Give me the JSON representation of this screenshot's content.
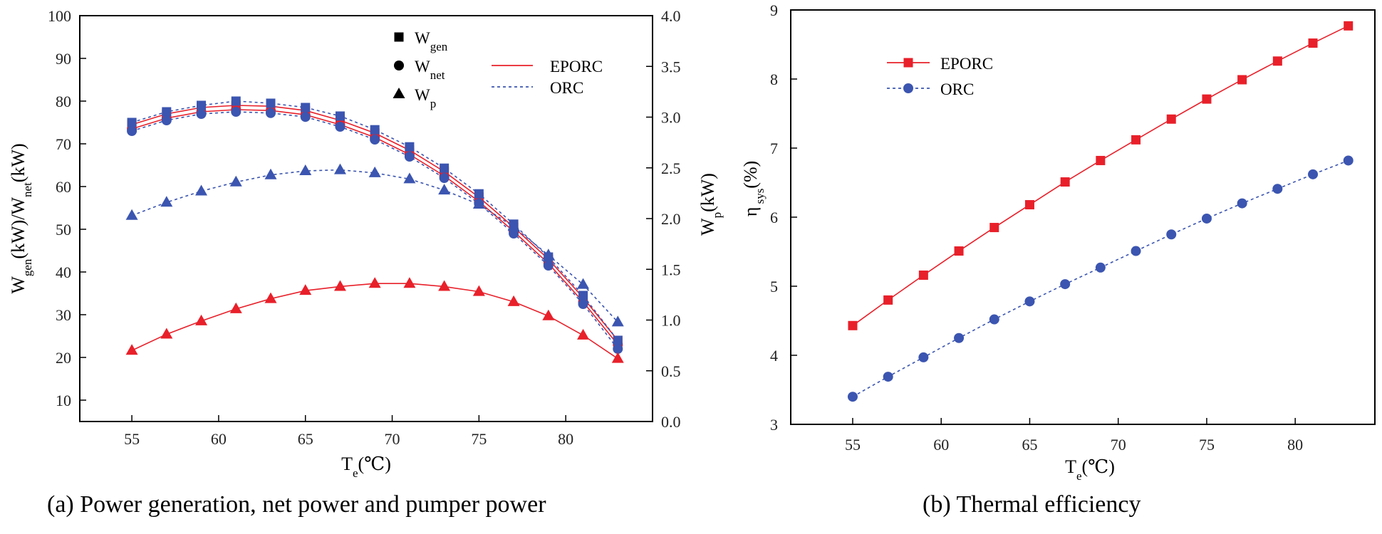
{
  "captions": {
    "a": "(a) Power generation, net power and pumper power",
    "b": "(b) Thermal efficiency"
  },
  "colors": {
    "eporc": "#e8202a",
    "orc": "#3b55b0",
    "axis": "#000000"
  },
  "chart_data": [
    {
      "type": "line",
      "xlabel": {
        "main": "T",
        "sub": "e",
        "tail": "(℃)"
      },
      "ylabel_left": {
        "parts": [
          [
            "W",
            ""
          ],
          [
            "gen",
            "sub"
          ],
          [
            "(kW)/W",
            ""
          ],
          [
            "net",
            "sub"
          ],
          [
            "(kW)",
            ""
          ]
        ]
      },
      "ylabel_right": {
        "parts": [
          [
            "W",
            ""
          ],
          [
            "p",
            "sub"
          ],
          [
            "(kW)",
            ""
          ]
        ]
      },
      "xlim": [
        52,
        85
      ],
      "xticks": [
        55,
        60,
        65,
        70,
        75,
        80
      ],
      "ylim_left": [
        5,
        100
      ],
      "yticks_left": [
        10,
        20,
        30,
        40,
        50,
        60,
        70,
        80,
        90,
        100
      ],
      "ylim_right": [
        0,
        4
      ],
      "yticks_right": [
        "0.0",
        "0.5",
        "1.0",
        "1.5",
        "2.0",
        "2.5",
        "3.0",
        "3.5",
        "4.0"
      ],
      "legend_markers": [
        {
          "main": "W",
          "sub": "gen",
          "marker": "square"
        },
        {
          "main": "W",
          "sub": "net",
          "marker": "circle"
        },
        {
          "main": "W",
          "sub": "p",
          "marker": "triangle"
        }
      ],
      "legend_lines": [
        {
          "label": "EPORC",
          "style": "solid",
          "color": "#e8202a"
        },
        {
          "label": "ORC",
          "style": "dashed",
          "color": "#3b55b0"
        }
      ],
      "x": [
        55,
        57,
        59,
        61,
        63,
        65,
        67,
        69,
        71,
        73,
        75,
        77,
        79,
        81,
        83
      ],
      "series": [
        {
          "label": "W_gen EPORC",
          "axis": "left",
          "marker": "square",
          "style": "solid",
          "color": "#e8202a",
          "values": [
            74.5,
            77,
            78.5,
            79,
            78.8,
            77.8,
            75.5,
            72.5,
            68.5,
            63.5,
            57.5,
            50.5,
            43,
            34,
            24
          ]
        },
        {
          "label": "W_net EPORC",
          "axis": "left",
          "marker": "circle",
          "style": "solid",
          "color": "#e8202a",
          "values": [
            73.5,
            76,
            77.5,
            78,
            77.8,
            76.8,
            74.5,
            71.5,
            67.5,
            62.5,
            56.5,
            49.5,
            42,
            33,
            23
          ]
        },
        {
          "label": "W_gen ORC",
          "axis": "left",
          "marker": "square",
          "style": "dashed",
          "color": "#3b55b0",
          "values": [
            75,
            77.5,
            79,
            80,
            79.5,
            78.5,
            76.5,
            73.3,
            69.3,
            64.3,
            58.3,
            51.2,
            43.5,
            34.5,
            24
          ]
        },
        {
          "label": "W_net ORC",
          "axis": "left",
          "marker": "circle",
          "style": "dashed",
          "color": "#3b55b0",
          "values": [
            73,
            75.5,
            77,
            77.5,
            77.2,
            76.3,
            74,
            71,
            67,
            62,
            56,
            49,
            41.5,
            32.5,
            22
          ]
        },
        {
          "label": "W_p EPORC",
          "axis": "right",
          "marker": "triangle",
          "style": "solid",
          "color": "#e8202a",
          "values": [
            0.7,
            0.86,
            0.99,
            1.11,
            1.21,
            1.29,
            1.33,
            1.36,
            1.36,
            1.33,
            1.28,
            1.18,
            1.04,
            0.85,
            0.62
          ]
        },
        {
          "label": "W_p ORC",
          "axis": "right",
          "marker": "triangle",
          "style": "dashed",
          "color": "#3b55b0",
          "values": [
            2.03,
            2.16,
            2.27,
            2.36,
            2.43,
            2.47,
            2.48,
            2.45,
            2.39,
            2.28,
            2.14,
            1.92,
            1.64,
            1.35,
            0.98
          ]
        }
      ]
    },
    {
      "type": "line",
      "xlabel": {
        "main": "T",
        "sub": "e",
        "tail": "(℃)"
      },
      "ylabel": {
        "parts": [
          [
            "η",
            ""
          ],
          [
            " sys",
            "sub"
          ],
          [
            "(%)",
            ""
          ]
        ]
      },
      "xlim": [
        51.5,
        84.5
      ],
      "xticks": [
        55,
        60,
        65,
        70,
        75,
        80
      ],
      "ylim": [
        3,
        9
      ],
      "yticks": [
        3,
        4,
        5,
        6,
        7,
        8,
        9
      ],
      "x": [
        55,
        57,
        59,
        61,
        63,
        65,
        67,
        69,
        71,
        73,
        75,
        77,
        79,
        81,
        83
      ],
      "series": [
        {
          "label": "EPORC",
          "marker": "square",
          "style": "solid",
          "color": "#e8202a",
          "values": [
            4.43,
            4.8,
            5.16,
            5.51,
            5.85,
            6.18,
            6.51,
            6.82,
            7.12,
            7.42,
            7.71,
            7.99,
            8.26,
            8.52,
            8.77
          ]
        },
        {
          "label": "ORC",
          "marker": "circle",
          "style": "dashed",
          "color": "#3b55b0",
          "values": [
            3.4,
            3.69,
            3.97,
            4.25,
            4.52,
            4.78,
            5.03,
            5.27,
            5.51,
            5.75,
            5.98,
            6.2,
            6.41,
            6.62,
            6.82
          ]
        }
      ]
    }
  ]
}
